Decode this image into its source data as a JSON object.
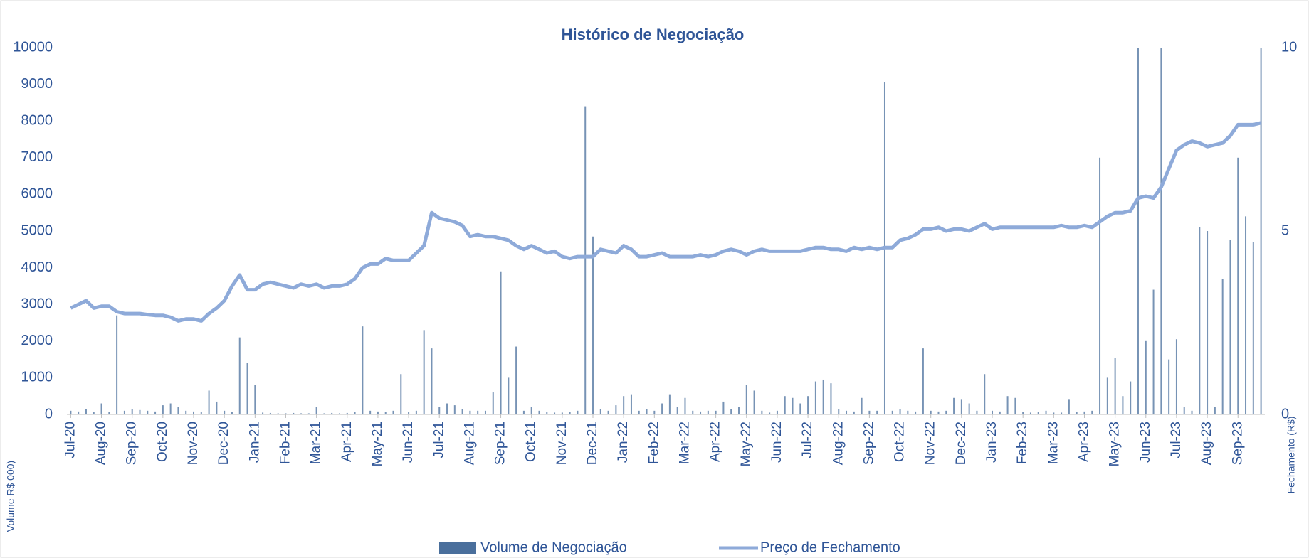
{
  "chart_data": {
    "type": "bar-line",
    "title": "Histórico de Negociação",
    "y_label": "Volume R$ 000)",
    "y2_label": "Fechamento (R$)",
    "categories": [
      "Jul-20",
      null,
      null,
      null,
      "Aug-20",
      null,
      null,
      null,
      "Sep-20",
      null,
      null,
      null,
      "Oct-20",
      null,
      null,
      null,
      "Nov-20",
      null,
      null,
      null,
      "Dec-20",
      null,
      null,
      null,
      "Jan-21",
      null,
      null,
      null,
      "Feb-21",
      null,
      null,
      null,
      "Mar-21",
      null,
      null,
      null,
      "Apr-21",
      null,
      null,
      null,
      "May-21",
      null,
      null,
      null,
      "Jun-21",
      null,
      null,
      null,
      "Jul-21",
      null,
      null,
      null,
      "Aug-21",
      null,
      null,
      null,
      "Sep-21",
      null,
      null,
      null,
      "Oct-21",
      null,
      null,
      null,
      "Nov-21",
      null,
      null,
      null,
      "Dec-21",
      null,
      null,
      null,
      "Jan-22",
      null,
      null,
      null,
      "Feb-22",
      null,
      null,
      null,
      "Mar-22",
      null,
      null,
      null,
      "Apr-22",
      null,
      null,
      null,
      "May-22",
      null,
      null,
      null,
      "Jun-22",
      null,
      null,
      null,
      "Jul-22",
      null,
      null,
      null,
      "Aug-22",
      null,
      null,
      null,
      "Sep-22",
      null,
      null,
      null,
      "Oct-22",
      null,
      null,
      null,
      "Nov-22",
      null,
      null,
      null,
      "Dec-22",
      null,
      null,
      null,
      "Jan-23",
      null,
      null,
      null,
      "Feb-23",
      null,
      null,
      null,
      "Mar-23",
      null,
      null,
      null,
      "Apr-23",
      null,
      null,
      null,
      "May-23",
      null,
      null,
      null,
      "Jun-23",
      null,
      null,
      null,
      "Jul-23",
      null,
      null,
      null,
      "Aug-23",
      null,
      null,
      null,
      "Sep-23",
      null,
      null,
      null
    ],
    "series": [
      {
        "name": "Volume de Negociação",
        "type": "bar",
        "color": "#4a6f9c",
        "values": [
          100,
          80,
          150,
          60,
          300,
          60,
          2700,
          100,
          150,
          120,
          100,
          80,
          250,
          300,
          200,
          100,
          80,
          60,
          650,
          350,
          100,
          60,
          2100,
          1400,
          800,
          50,
          40,
          30,
          30,
          40,
          30,
          30,
          200,
          30,
          40,
          30,
          40,
          60,
          2400,
          100,
          80,
          60,
          100,
          1100,
          60,
          100,
          2300,
          1800,
          200,
          300,
          250,
          150,
          100,
          100,
          100,
          600,
          3900,
          1000,
          1850,
          100,
          200,
          100,
          60,
          50,
          50,
          60,
          100,
          8400,
          4850,
          150,
          100,
          250,
          500,
          550,
          100,
          150,
          100,
          300,
          550,
          200,
          450,
          100,
          80,
          100,
          100,
          350,
          150,
          200,
          800,
          650,
          100,
          50,
          100,
          500,
          450,
          300,
          500,
          900,
          950,
          850,
          150,
          100,
          80,
          450,
          100,
          100,
          9050,
          100,
          150,
          100,
          80,
          1800,
          100,
          80,
          100,
          450,
          400,
          300,
          100,
          1100,
          100,
          80,
          500,
          450,
          60,
          50,
          60,
          100,
          50,
          50,
          400,
          60,
          80,
          100,
          7000,
          1000,
          1550,
          500,
          900,
          10000,
          2000,
          3400,
          10000,
          1500,
          2050,
          200,
          100,
          5100,
          5000,
          200,
          3700,
          4750,
          7000,
          5400,
          4700,
          10000
        ]
      },
      {
        "name": "Preço de Fechamento",
        "type": "line",
        "axis": "y2",
        "color": "#8eaad9",
        "values": [
          2.9,
          3.0,
          3.1,
          2.9,
          2.95,
          2.95,
          2.8,
          2.75,
          2.75,
          2.75,
          2.72,
          2.7,
          2.7,
          2.65,
          2.55,
          2.6,
          2.6,
          2.55,
          2.75,
          2.9,
          3.1,
          3.5,
          3.8,
          3.4,
          3.4,
          3.55,
          3.6,
          3.55,
          3.5,
          3.45,
          3.55,
          3.5,
          3.55,
          3.45,
          3.5,
          3.5,
          3.55,
          3.7,
          4.0,
          4.1,
          4.1,
          4.25,
          4.2,
          4.2,
          4.2,
          4.4,
          4.6,
          5.5,
          5.35,
          5.3,
          5.25,
          5.15,
          4.85,
          4.9,
          4.85,
          4.85,
          4.8,
          4.75,
          4.6,
          4.5,
          4.6,
          4.5,
          4.4,
          4.45,
          4.3,
          4.25,
          4.3,
          4.3,
          4.3,
          4.5,
          4.45,
          4.4,
          4.6,
          4.5,
          4.3,
          4.3,
          4.35,
          4.4,
          4.3,
          4.3,
          4.3,
          4.3,
          4.35,
          4.3,
          4.35,
          4.45,
          4.5,
          4.45,
          4.35,
          4.45,
          4.5,
          4.45,
          4.45,
          4.45,
          4.45,
          4.45,
          4.5,
          4.55,
          4.55,
          4.5,
          4.5,
          4.45,
          4.55,
          4.5,
          4.55,
          4.5,
          4.55,
          4.55,
          4.75,
          4.8,
          4.9,
          5.05,
          5.05,
          5.1,
          5.0,
          5.05,
          5.05,
          5.0,
          5.1,
          5.2,
          5.05,
          5.1,
          5.1,
          5.1,
          5.1,
          5.1,
          5.1,
          5.1,
          5.1,
          5.15,
          5.1,
          5.1,
          5.15,
          5.1,
          5.25,
          5.4,
          5.5,
          5.5,
          5.55,
          5.9,
          5.95,
          5.9,
          6.2,
          6.7,
          7.2,
          7.35,
          7.45,
          7.4,
          7.3,
          7.35,
          7.4,
          7.6,
          7.9,
          7.9,
          7.9,
          7.95
        ]
      }
    ],
    "ylim": [
      0,
      10000
    ],
    "yticks": [
      0,
      1000,
      2000,
      3000,
      4000,
      5000,
      6000,
      7000,
      8000,
      9000,
      10000
    ],
    "y2lim": [
      0,
      10
    ],
    "y2ticks": [
      0,
      5,
      10
    ],
    "legend": "bottom"
  }
}
